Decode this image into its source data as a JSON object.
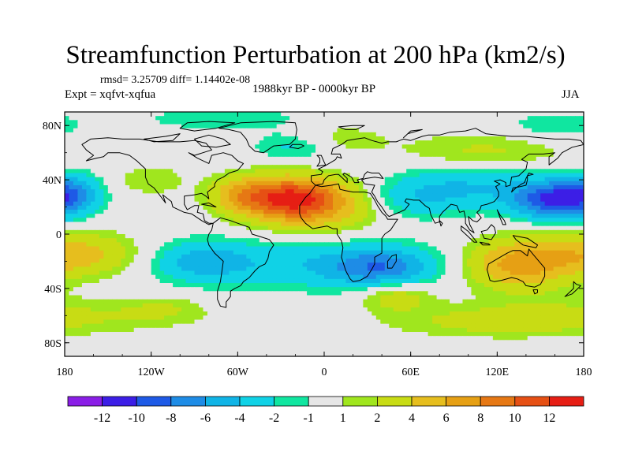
{
  "header": {
    "title": "Streamfunction Perturbation at 200 hPa (km2/s)",
    "stats": "rmsd= 3.25709 diff= 1.14402e-08",
    "experiment": "Expt = xqfvt-xqfua",
    "period": "1988kyr BP - 0000kyr BP",
    "season": "JJA"
  },
  "chart_data": {
    "type": "heatmap",
    "title": "Streamfunction Perturbation at 200 hPa (km2/s)",
    "xlabel": "",
    "ylabel": "",
    "x_ticks": [
      "180",
      "120W",
      "60W",
      "0",
      "60E",
      "120E",
      "180"
    ],
    "x_tick_values": [
      -180,
      -120,
      -60,
      0,
      60,
      120,
      180
    ],
    "y_ticks": [
      "80N",
      "40N",
      "0",
      "40S",
      "80S"
    ],
    "y_tick_values": [
      80,
      40,
      0,
      -40,
      -80
    ],
    "xlim": [
      -180,
      180
    ],
    "ylim": [
      -90,
      90
    ],
    "colorbar": {
      "levels": [
        "-12",
        "-10",
        "-8",
        "-6",
        "-4",
        "-2",
        "-1",
        "1",
        "2",
        "4",
        "6",
        "8",
        "10",
        "12"
      ],
      "colors": [
        "#8a1ee6",
        "#3c1ee6",
        "#1e5ae6",
        "#1e8ce6",
        "#10b4e6",
        "#10d2e6",
        "#10e6a0",
        "#e6e6e6",
        "#a0e61e",
        "#c8dc14",
        "#e6be1e",
        "#e6a014",
        "#e67814",
        "#e65014",
        "#e61e14"
      ]
    },
    "features": [
      {
        "lon": -25,
        "lat": 27,
        "value": 11,
        "sx": 26,
        "sy": 11
      },
      {
        "lon": -5,
        "lat": 18,
        "value": 4,
        "sx": 30,
        "sy": 13
      },
      {
        "lon": -60,
        "lat": 30,
        "value": 3,
        "sx": 14,
        "sy": 9
      },
      {
        "lon": -170,
        "lat": -15,
        "value": 5,
        "sx": 28,
        "sy": 11
      },
      {
        "lon": 135,
        "lat": -22,
        "value": 7,
        "sx": 26,
        "sy": 13
      },
      {
        "lon": 50,
        "lat": -45,
        "value": 3.5,
        "sx": 18,
        "sy": 8
      },
      {
        "lon": 110,
        "lat": 60,
        "value": 2.5,
        "sx": 40,
        "sy": 10
      },
      {
        "lon": 5,
        "lat": 70,
        "value": 2,
        "sx": 25,
        "sy": 8
      },
      {
        "lon": -120,
        "lat": 40,
        "value": 2,
        "sx": 16,
        "sy": 8
      },
      {
        "lon": 160,
        "lat": 25,
        "value": -10,
        "sx": 20,
        "sy": 10
      },
      {
        "lon": 100,
        "lat": 35,
        "value": -4,
        "sx": 35,
        "sy": 12
      },
      {
        "lon": 60,
        "lat": 25,
        "value": -2.5,
        "sx": 22,
        "sy": 10
      },
      {
        "lon": -175,
        "lat": 30,
        "value": -5,
        "sx": 14,
        "sy": 10
      },
      {
        "lon": -15,
        "lat": -22,
        "value": -3.5,
        "sx": 60,
        "sy": 13
      },
      {
        "lon": 40,
        "lat": -25,
        "value": -6,
        "sx": 25,
        "sy": 10
      },
      {
        "lon": -85,
        "lat": -20,
        "value": -4,
        "sx": 22,
        "sy": 10
      },
      {
        "lon": -20,
        "lat": 65,
        "value": -3,
        "sx": 20,
        "sy": 8
      },
      {
        "lon": -70,
        "lat": 85,
        "value": -2,
        "sx": 40,
        "sy": 6
      },
      {
        "lon": 160,
        "lat": 80,
        "value": -2,
        "sx": 25,
        "sy": 7
      },
      {
        "lon": -180,
        "lat": -60,
        "value": 2,
        "sx": 60,
        "sy": 10
      },
      {
        "lon": 110,
        "lat": -65,
        "value": 2,
        "sx": 50,
        "sy": 8
      },
      {
        "lon": -110,
        "lat": -55,
        "value": 1.5,
        "sx": 20,
        "sy": 7
      }
    ]
  }
}
